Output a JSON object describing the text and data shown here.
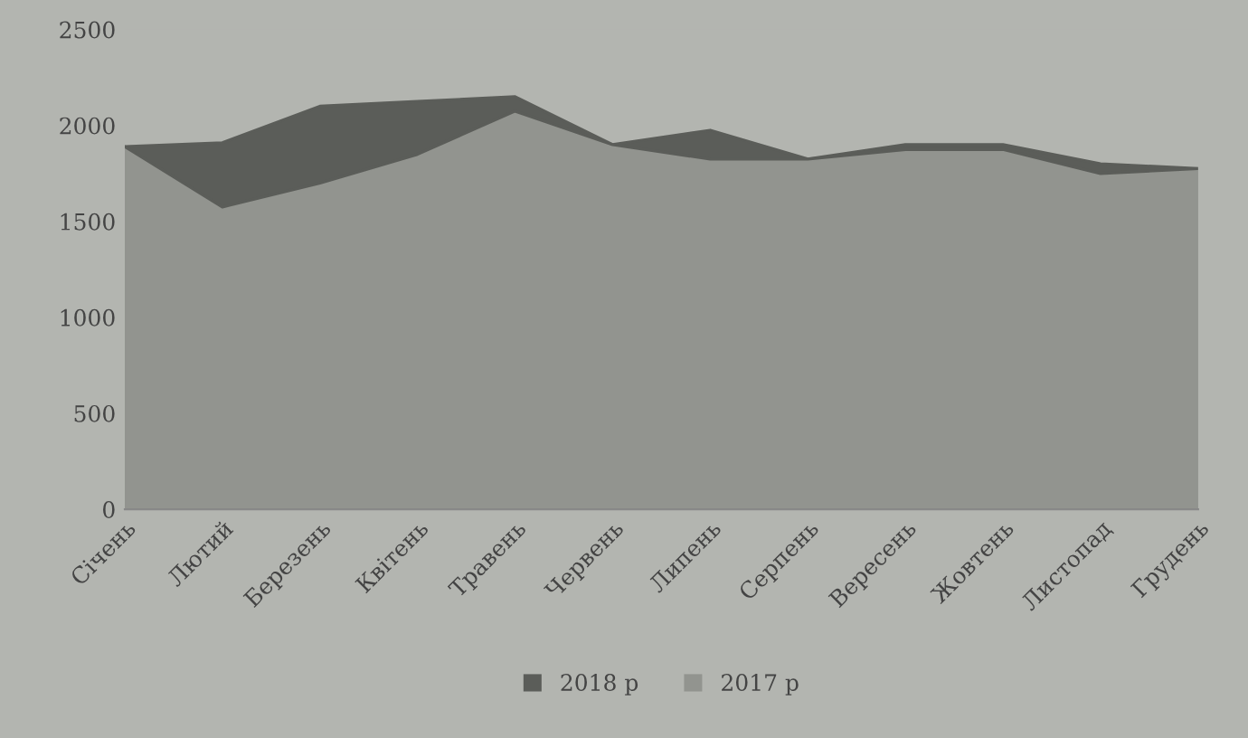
{
  "chart_data": {
    "type": "area",
    "categories": [
      "Січень",
      "Лютий",
      "Березень",
      "Квітень",
      "Травень",
      "Червень",
      "Липень",
      "Серпень",
      "Вересень",
      "Жовтень",
      "Листопад",
      "Грудень"
    ],
    "series": [
      {
        "name": "2018 р",
        "color": "#5b5d59",
        "values": [
          1890,
          1910,
          2100,
          2125,
          2150,
          1900,
          1975,
          1825,
          1900,
          1900,
          1800,
          1775
        ]
      },
      {
        "name": "2017 р",
        "color": "#92948f",
        "values": [
          1890,
          1575,
          1700,
          1850,
          2075,
          1900,
          1825,
          1825,
          1875,
          1875,
          1750,
          1775
        ]
      }
    ],
    "ylim": [
      0,
      2500
    ],
    "yticks": [
      0,
      500,
      1000,
      1500,
      2000,
      2500
    ],
    "legend": "bottom"
  }
}
